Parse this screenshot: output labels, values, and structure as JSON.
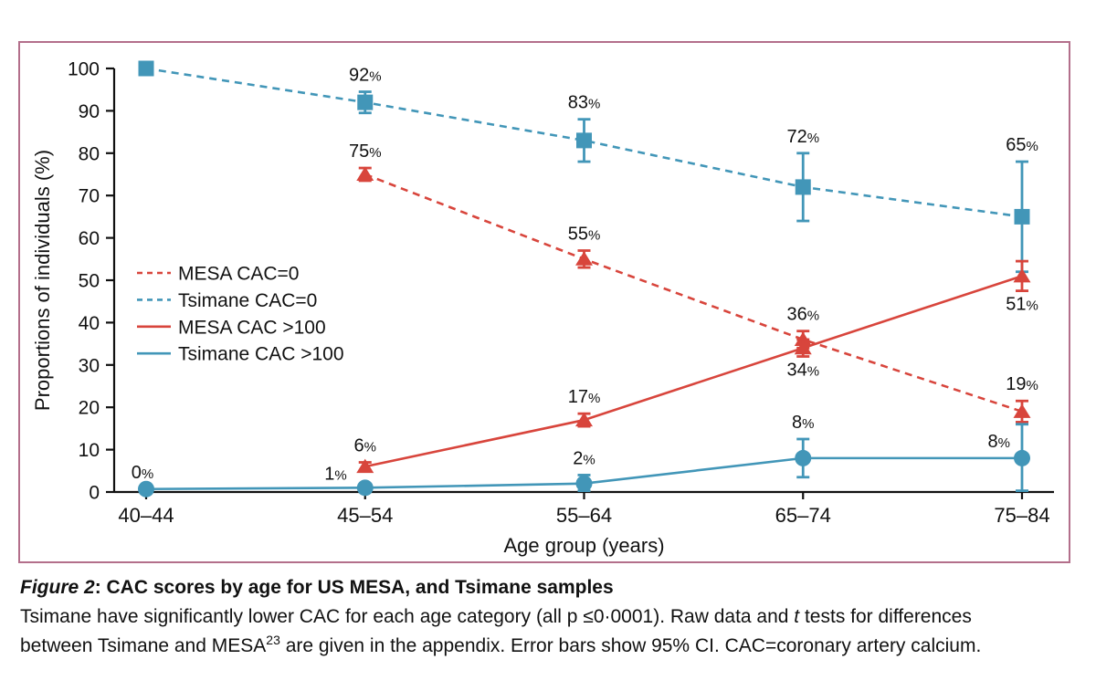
{
  "figure": {
    "border_color": "#b36f8b",
    "background": "#ffffff"
  },
  "colors": {
    "mesa_red": "#d8453c",
    "tsimane_blue": "#4296b8",
    "axis_black": "#111111"
  },
  "chart_data": {
    "type": "line",
    "title": "",
    "xlabel": "Age group (years)",
    "ylabel": "Proportions of individuals (%)",
    "ylim": [
      0,
      100
    ],
    "yticks": [
      0,
      10,
      20,
      30,
      40,
      50,
      60,
      70,
      80,
      90,
      100
    ],
    "categories": [
      "40–44",
      "45–54",
      "55–64",
      "65–74",
      "75–84"
    ],
    "grid": false,
    "legend_position": "center-left",
    "error_bars": "95% CI",
    "series": [
      {
        "name": "MESA CAC=0",
        "color": "#d8453c",
        "line": "dashed",
        "marker": "triangle",
        "values": [
          null,
          75,
          55,
          36,
          19
        ],
        "ci95_halfwidth": [
          null,
          1.5,
          2,
          2,
          2.5
        ],
        "point_labels": [
          null,
          "75%",
          "55%",
          "36%",
          "19%"
        ]
      },
      {
        "name": "Tsimane CAC=0",
        "color": "#4296b8",
        "line": "dashed",
        "marker": "square",
        "values": [
          100,
          92,
          83,
          72,
          65
        ],
        "ci95_halfwidth": [
          0,
          2.5,
          5,
          8,
          13
        ],
        "point_labels": [
          "",
          "92%",
          "83%",
          "72%",
          "65%"
        ]
      },
      {
        "name": "MESA CAC >100",
        "color": "#d8453c",
        "line": "solid",
        "marker": "triangle",
        "values": [
          null,
          6,
          17,
          34,
          51
        ],
        "ci95_halfwidth": [
          null,
          1,
          1.5,
          2,
          3.5
        ],
        "point_labels": [
          null,
          "6%",
          "17%",
          "34%",
          "51%"
        ]
      },
      {
        "name": "Tsimane CAC >100",
        "color": "#4296b8",
        "line": "solid",
        "marker": "circle",
        "values": [
          0,
          1,
          2,
          8,
          8
        ],
        "ci95_halfwidth": [
          0,
          0,
          2,
          4.5,
          8
        ],
        "point_labels": [
          "0%",
          "1%",
          "2%",
          "8%",
          "8%"
        ]
      }
    ]
  },
  "caption": {
    "title_segments": [
      {
        "text": "Figure 2",
        "style": "bold-italic"
      },
      {
        "text": ": ",
        "style": "bold"
      },
      {
        "text": "CAC scores by age for US MESA, and Tsimane samples",
        "style": "bold"
      }
    ],
    "body_lines": [
      [
        {
          "text": "Tsimane have significantly lower CAC for each age category (all p ≤0·0001). Raw data and "
        },
        {
          "text": "t",
          "style": "italic"
        },
        {
          "text": " tests for differences"
        }
      ],
      [
        {
          "text": "between Tsimane and MESA"
        },
        {
          "text": "23",
          "style": "superscript"
        },
        {
          "text": " are given in the appendix. Error bars show 95% CI. CAC=coronary artery calcium."
        }
      ]
    ]
  }
}
